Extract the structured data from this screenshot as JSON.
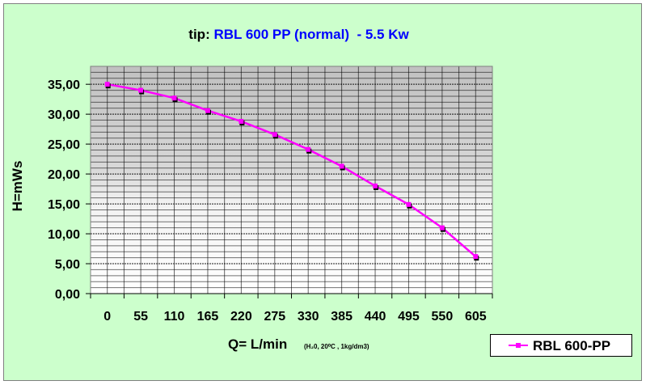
{
  "chart_data": {
    "type": "line",
    "title_prefix": "tip:",
    "title": "RBL 600 PP (normal)  - 5.5 Kw",
    "xlabel": "Q= L/min",
    "xlabel_note": "(H₂0, 20⁰C , 1kg/dm3)",
    "ylabel": "H=mWs",
    "categories": [
      "0",
      "55",
      "110",
      "165",
      "220",
      "275",
      "330",
      "385",
      "440",
      "495",
      "550",
      "605"
    ],
    "ylim": [
      0,
      38
    ],
    "yticks": [
      0,
      5,
      10,
      15,
      20,
      25,
      30,
      35
    ],
    "ytick_labels": [
      "0,00",
      "5,00",
      "10,00",
      "15,00",
      "20,00",
      "25,00",
      "30,00",
      "35,00"
    ],
    "grid": true,
    "legend_position": "bottom-right",
    "series": [
      {
        "name": "RBL 600-PP",
        "color": "#ff00ff",
        "values": [
          35.0,
          34.0,
          32.7,
          30.6,
          28.8,
          26.6,
          24.1,
          21.3,
          18.0,
          14.9,
          11.0,
          6.2
        ]
      }
    ]
  },
  "colors": {
    "background": "#ccffcc",
    "title": "#0000ff",
    "series": "#ff00ff"
  }
}
